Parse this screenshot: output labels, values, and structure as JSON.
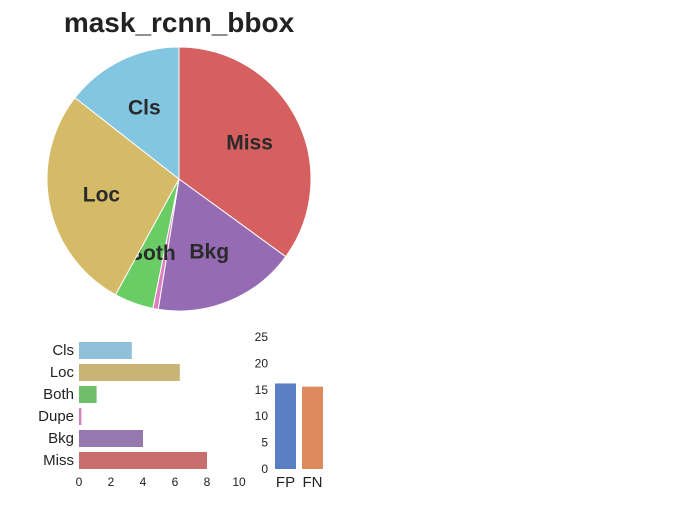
{
  "chart_data": [
    {
      "type": "pie",
      "title": "mask_rcnn_bbox",
      "labels": [
        "Miss",
        "Bkg",
        "Dupe",
        "Both",
        "Loc",
        "Cls"
      ],
      "display_labels": [
        "Miss",
        "Bkg",
        "",
        "Both",
        "Loc",
        "Cls"
      ],
      "values": [
        8.0,
        4.0,
        0.15,
        1.1,
        6.3,
        3.3
      ],
      "start_angle_deg": 90,
      "direction": "clockwise",
      "colors": [
        "#d65f5f",
        "#956cb4",
        "#dc7ec0",
        "#6acc64",
        "#d5bb67",
        "#82c6e2"
      ]
    },
    {
      "type": "bar",
      "orientation": "horizontal",
      "categories": [
        "Cls",
        "Loc",
        "Both",
        "Dupe",
        "Bkg",
        "Miss"
      ],
      "values": [
        3.3,
        6.3,
        1.1,
        0.15,
        4.0,
        8.0
      ],
      "xlim": [
        0,
        10
      ],
      "xticks": [
        "0",
        "2",
        "4",
        "6",
        "8",
        "10"
      ],
      "colors": [
        "#8fbfd9",
        "#c8b474",
        "#6fbf69",
        "#d083bf",
        "#9478ae",
        "#c96e6e"
      ]
    },
    {
      "type": "bar",
      "orientation": "vertical",
      "categories": [
        "FP",
        "FN"
      ],
      "values": [
        16.2,
        15.6
      ],
      "ylim": [
        0,
        25
      ],
      "yticks": [
        "0",
        "5",
        "10",
        "15",
        "20",
        "25"
      ],
      "colors": [
        "#5a7ec2",
        "#dd8a5e"
      ]
    }
  ]
}
